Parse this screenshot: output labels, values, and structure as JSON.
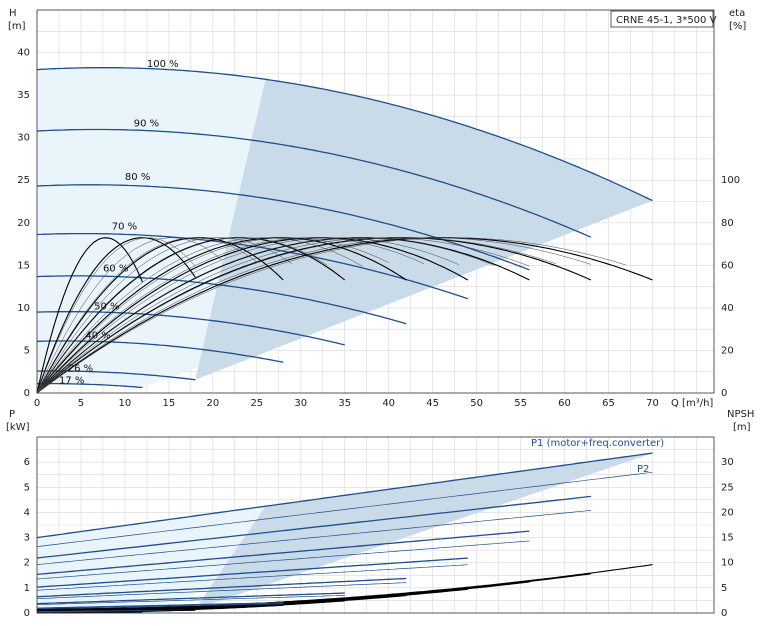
{
  "chart_data": [
    {
      "type": "line",
      "title": "CRNE 45-1, 3*500 V",
      "xlabel": "Q [m³/h]",
      "ylabel_left": "H",
      "ylabel_left_unit": "[m]",
      "ylabel_right": "eta",
      "ylabel_right_unit": "[%]",
      "xlim": [
        0,
        77
      ],
      "ylim_left": [
        0,
        45
      ],
      "ylim_right": [
        0,
        180
      ],
      "x_ticks": [
        "0",
        "5",
        "10",
        "15",
        "20",
        "25",
        "30",
        "35",
        "40",
        "45",
        "50",
        "55",
        "60",
        "65",
        "70"
      ],
      "y_left_ticks": [
        "0",
        "5",
        "10",
        "15",
        "20",
        "25",
        "30",
        "35",
        "40"
      ],
      "y_right_ticks": [
        "0",
        "20",
        "40",
        "60",
        "80",
        "100"
      ],
      "grid": true,
      "head_curves": [
        {
          "label": "100 %",
          "speed": 1.0,
          "q_max": 70,
          "label_q": 12.5,
          "label_h": 38.3
        },
        {
          "label": "90 %",
          "speed": 0.9,
          "q_max": 63,
          "label_q": 11,
          "label_h": 31.3
        },
        {
          "label": "80 %",
          "speed": 0.8,
          "q_max": 56,
          "label_q": 10,
          "label_h": 25
        },
        {
          "label": "70 %",
          "speed": 0.7,
          "q_max": 49,
          "label_q": 8.5,
          "label_h": 19.2
        },
        {
          "label": "60 %",
          "speed": 0.6,
          "q_max": 42,
          "label_q": 7.5,
          "label_h": 14.3
        },
        {
          "label": "50 %",
          "speed": 0.5,
          "q_max": 35,
          "label_q": 6.5,
          "label_h": 9.8
        },
        {
          "label": "40 %",
          "speed": 0.4,
          "q_max": 28,
          "label_q": 5.5,
          "label_h": 6.4
        },
        {
          "label": "26 %",
          "speed": 0.26,
          "q_max": 18,
          "label_q": 3.5,
          "label_h": 2.5
        },
        {
          "label": "17 %",
          "speed": 0.17,
          "q_max": 12,
          "label_q": 2.5,
          "label_h": 1.1
        }
      ],
      "head_model": {
        "h0": 38,
        "a": 0.06,
        "b": 0.004
      },
      "efficiency_model": {
        "eta_max": 73,
        "q_peak": 46
      }
    },
    {
      "type": "line",
      "xlabel": "",
      "ylabel_left": "P",
      "ylabel_left_unit": "[kW]",
      "ylabel_right": "NPSH",
      "ylabel_right_unit": "[m]",
      "xlim": [
        0,
        77
      ],
      "ylim_left": [
        0,
        7
      ],
      "ylim_right": [
        0,
        35
      ],
      "y_left_ticks": [
        "0",
        "1",
        "2",
        "3",
        "4",
        "5",
        "6"
      ],
      "y_right_ticks": [
        "0",
        "5",
        "10",
        "15",
        "20",
        "25",
        "30"
      ],
      "grid": true,
      "series_labels": [
        "P1 (motor+freq.converter)",
        "P2"
      ],
      "p1_model": {
        "p0": 3.0,
        "k": 0.048
      },
      "p2_ratio": 0.88,
      "npsh_model": {
        "n0": 0.8,
        "c": 0.0018
      }
    }
  ]
}
